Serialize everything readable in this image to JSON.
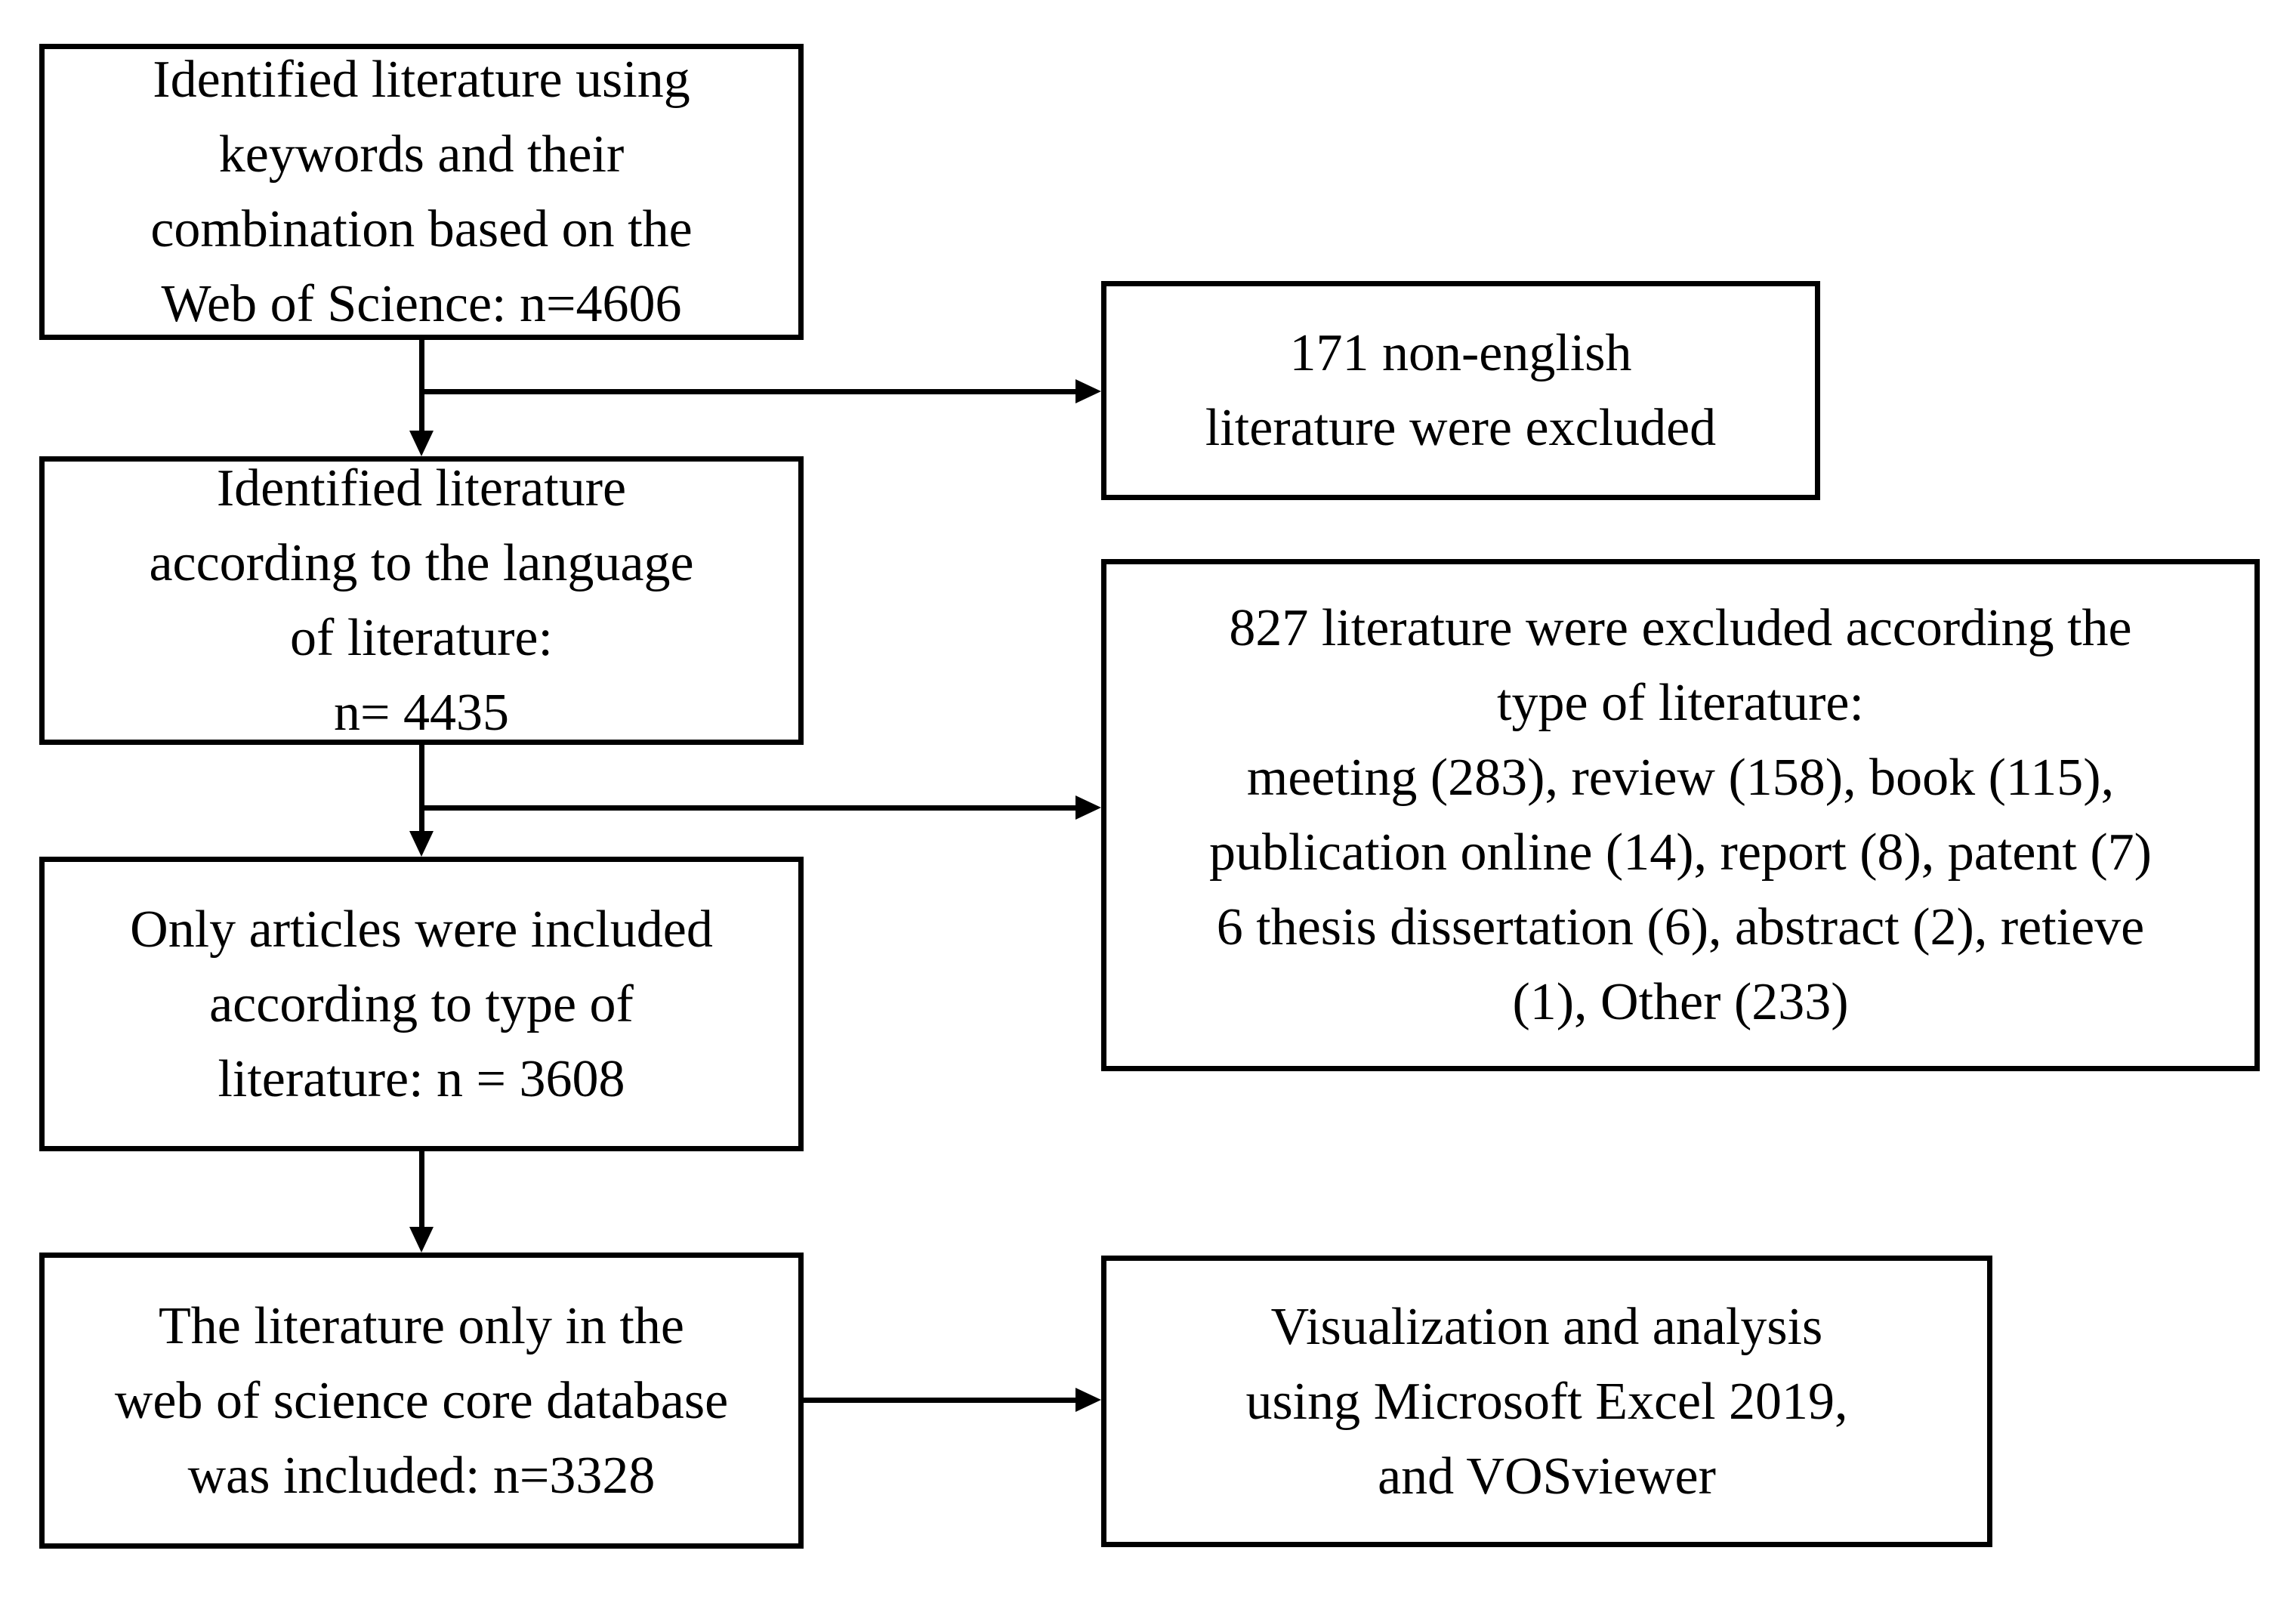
{
  "diagram": {
    "type": "flowchart",
    "colors": {
      "background": "#ffffff",
      "border": "#000000",
      "text": "#000000"
    },
    "boxes": {
      "identification": {
        "lines": [
          "Identified literature using",
          "keywords and their",
          "combination based on the",
          "Web of Science: n=4606"
        ]
      },
      "language_screen": {
        "lines": [
          "Identified literature",
          "according to the language",
          "of literature:",
          "n= 4435"
        ]
      },
      "articles_only": {
        "lines": [
          "Only articles were included",
          "according to type of",
          "literature: n = 3608"
        ]
      },
      "core_database": {
        "lines": [
          "The literature only in the",
          "web of science core database",
          "was included: n=3328"
        ]
      },
      "excluded_non_english": {
        "lines": [
          "171 non-english",
          "literature were excluded"
        ]
      },
      "excluded_by_type": {
        "lines": [
          "827 literature were excluded according the",
          "type of literature:",
          "meeting (283), review (158), book (115),",
          "publication online (14), report (8), patent (7)",
          "6 thesis dissertation (6), abstract (2), retieve",
          "(1), Other (233)"
        ]
      },
      "analysis_tools": {
        "lines": [
          "Visualization and analysis",
          "using Microsoft Excel 2019,",
          "and VOSviewer"
        ]
      }
    },
    "edges": [
      {
        "from": "identification",
        "to": "language_screen",
        "style": "arrow-down"
      },
      {
        "from": "identification",
        "to": "excluded_non_english",
        "style": "arrow-right-branch"
      },
      {
        "from": "language_screen",
        "to": "articles_only",
        "style": "arrow-down"
      },
      {
        "from": "language_screen",
        "to": "excluded_by_type",
        "style": "arrow-right-branch"
      },
      {
        "from": "articles_only",
        "to": "core_database",
        "style": "arrow-down"
      },
      {
        "from": "core_database",
        "to": "analysis_tools",
        "style": "arrow-right"
      }
    ]
  }
}
